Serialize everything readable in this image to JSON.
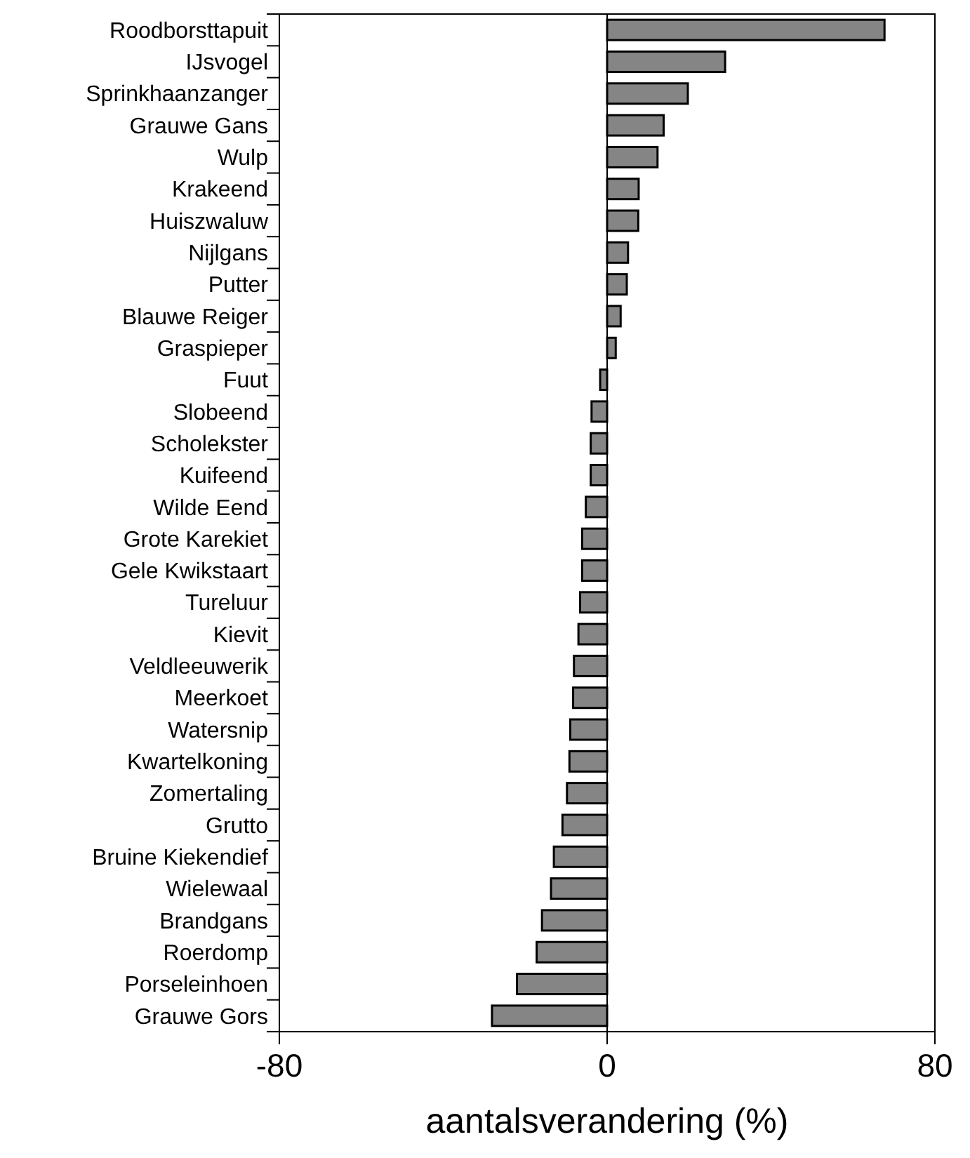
{
  "chart_data": {
    "type": "bar",
    "orientation": "horizontal",
    "xlabel": "aantalsverandering (%)",
    "categories": [
      "Roodborsttapuit",
      "IJsvogel",
      "Sprinkhaanzanger",
      "Grauwe Gans",
      "Wulp",
      "Krakeend",
      "Huiszwaluw",
      "Nijlgans",
      "Putter",
      "Blauwe Reiger",
      "Graspieper",
      "Fuut",
      "Slobeend",
      "Scholekster",
      "Kuifeend",
      "Wilde Eend",
      "Grote Karekiet",
      "Gele Kwikstaart",
      "Tureluur",
      "Kievit",
      "Veldleeuwerik",
      "Meerkoet",
      "Watersnip",
      "Kwartelkoning",
      "Zomertaling",
      "Grutto",
      "Bruine Kiekendief",
      "Wielewaal",
      "Brandgans",
      "Roerdomp",
      "Porseleinhoen",
      "Grauwe Gors"
    ],
    "values": [
      67.7,
      28.8,
      19.7,
      13.8,
      12.3,
      7.7,
      7.6,
      5.1,
      4.8,
      3.3,
      2.1,
      -1.7,
      -3.8,
      -4,
      -4,
      -5.2,
      -6.1,
      -6.1,
      -6.6,
      -7,
      -8.1,
      -8.3,
      -9,
      -9.2,
      -9.8,
      -10.9,
      -13,
      -13.7,
      -15.9,
      -17.2,
      -22,
      -28.1
    ],
    "color": "#858585",
    "xlim": [
      -80,
      80
    ],
    "xticks": [
      -80,
      0,
      80
    ]
  }
}
